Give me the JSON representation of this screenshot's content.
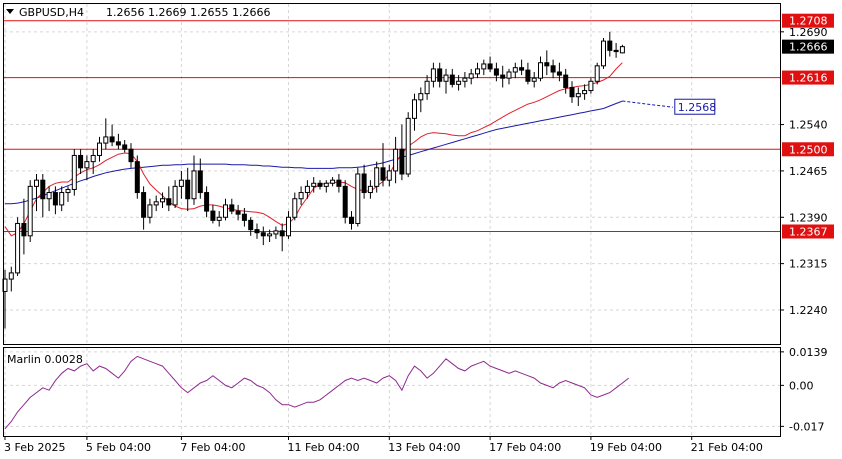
{
  "header": {
    "symbol": "GBPUSD,H4",
    "ohlc": "1.2656 1.2669 1.2655 1.2666"
  },
  "colors": {
    "background": "#ffffff",
    "grid": "#d6d6d6",
    "bull_candle": "#ffffff",
    "bear_candle": "#000000",
    "candle_outline": "#000000",
    "ma_fast": "#e0202a",
    "ma_slow": "#1a1aa8",
    "level_line": "#e01010",
    "level_label_bg": "#e01010",
    "current_price_bg": "#000000",
    "marlin_line": "#8e2a8e",
    "projection_label": "#1a1aa8"
  },
  "chart_data": [
    {
      "type": "candlestick",
      "ylim": [
        1.2185,
        1.2735
      ],
      "y_ticks": [
        "1.2690",
        "1.2540",
        "1.2465",
        "1.2390",
        "1.2315",
        "1.2240"
      ],
      "x_ticks": [
        {
          "label": "3 Feb 2025",
          "index": 0
        },
        {
          "label": "5 Feb 04:00",
          "index": 13
        },
        {
          "label": "7 Feb 04:00",
          "index": 28
        },
        {
          "label": "11 Feb 04:00",
          "index": 45
        },
        {
          "label": "13 Feb 04:00",
          "index": 61
        },
        {
          "label": "17 Feb 04:00",
          "index": 77
        },
        {
          "label": "19 Feb 04:00",
          "index": 93
        },
        {
          "label": "21 Feb 04:00",
          "index": 109
        }
      ],
      "candles": [
        [
          1.227,
          1.2305,
          1.221,
          1.229
        ],
        [
          1.229,
          1.231,
          1.227,
          1.23
        ],
        [
          1.23,
          1.239,
          1.2295,
          1.238
        ],
        [
          1.238,
          1.242,
          1.233,
          1.236
        ],
        [
          1.236,
          1.245,
          1.235,
          1.244
        ],
        [
          1.244,
          1.246,
          1.24,
          1.245
        ],
        [
          1.245,
          1.246,
          1.239,
          1.242
        ],
        [
          1.242,
          1.244,
          1.24,
          1.243
        ],
        [
          1.243,
          1.244,
          1.2395,
          1.241
        ],
        [
          1.241,
          1.244,
          1.24,
          1.243
        ],
        [
          1.243,
          1.244,
          1.2415,
          1.2435
        ],
        [
          1.2435,
          1.25,
          1.2425,
          1.249
        ],
        [
          1.249,
          1.25,
          1.246,
          1.247
        ],
        [
          1.247,
          1.249,
          1.245,
          1.248
        ],
        [
          1.248,
          1.25,
          1.246,
          1.249
        ],
        [
          1.249,
          1.252,
          1.248,
          1.251
        ],
        [
          1.251,
          1.255,
          1.25,
          1.252
        ],
        [
          1.252,
          1.254,
          1.2505,
          1.2512
        ],
        [
          1.2512,
          1.2525,
          1.25,
          1.2507
        ],
        [
          1.2507,
          1.2515,
          1.2495,
          1.25
        ],
        [
          1.25,
          1.251,
          1.247,
          1.248
        ],
        [
          1.248,
          1.249,
          1.242,
          1.243
        ],
        [
          1.243,
          1.244,
          1.237,
          1.239
        ],
        [
          1.239,
          1.242,
          1.238,
          1.241
        ],
        [
          1.241,
          1.2425,
          1.24,
          1.2415
        ],
        [
          1.2415,
          1.243,
          1.2405,
          1.242
        ],
        [
          1.242,
          1.244,
          1.24,
          1.241
        ],
        [
          1.241,
          1.245,
          1.2405,
          1.244
        ],
        [
          1.244,
          1.2465,
          1.242,
          1.245
        ],
        [
          1.245,
          1.247,
          1.24,
          1.242
        ],
        [
          1.242,
          1.249,
          1.241,
          1.2465
        ],
        [
          1.2465,
          1.2485,
          1.242,
          1.243
        ],
        [
          1.243,
          1.244,
          1.239,
          1.24
        ],
        [
          1.24,
          1.241,
          1.238,
          1.2385
        ],
        [
          1.2385,
          1.24,
          1.2375,
          1.239
        ],
        [
          1.239,
          1.242,
          1.2385,
          1.241
        ],
        [
          1.241,
          1.242,
          1.2395,
          1.24
        ],
        [
          1.24,
          1.241,
          1.2385,
          1.2395
        ],
        [
          1.2395,
          1.2405,
          1.2375,
          1.2385
        ],
        [
          1.2385,
          1.239,
          1.236,
          1.237
        ],
        [
          1.237,
          1.238,
          1.2355,
          1.2365
        ],
        [
          1.2365,
          1.2375,
          1.2345,
          1.236
        ],
        [
          1.236,
          1.237,
          1.235,
          1.2363
        ],
        [
          1.2363,
          1.2375,
          1.2355,
          1.2368
        ],
        [
          1.2368,
          1.238,
          1.2335,
          1.236
        ],
        [
          1.236,
          1.24,
          1.2355,
          1.239
        ],
        [
          1.239,
          1.243,
          1.2385,
          1.242
        ],
        [
          1.242,
          1.244,
          1.241,
          1.243
        ],
        [
          1.243,
          1.245,
          1.242,
          1.244
        ],
        [
          1.244,
          1.2455,
          1.243,
          1.2445
        ],
        [
          1.2445,
          1.245,
          1.2435,
          1.244
        ],
        [
          1.244,
          1.245,
          1.243,
          1.2445
        ],
        [
          1.2445,
          1.2455,
          1.244,
          1.245
        ],
        [
          1.245,
          1.246,
          1.243,
          1.244
        ],
        [
          1.244,
          1.245,
          1.238,
          1.239
        ],
        [
          1.239,
          1.24,
          1.237,
          1.238
        ],
        [
          1.238,
          1.247,
          1.2375,
          1.246
        ],
        [
          1.246,
          1.2475,
          1.242,
          1.243
        ],
        [
          1.243,
          1.245,
          1.242,
          1.244
        ],
        [
          1.244,
          1.248,
          1.243,
          1.247
        ],
        [
          1.247,
          1.251,
          1.244,
          1.245
        ],
        [
          1.245,
          1.2475,
          1.244,
          1.2465
        ],
        [
          1.2465,
          1.252,
          1.2445,
          1.25
        ],
        [
          1.25,
          1.254,
          1.245,
          1.246
        ],
        [
          1.246,
          1.256,
          1.2455,
          1.255
        ],
        [
          1.255,
          1.259,
          1.253,
          1.258
        ],
        [
          1.258,
          1.26,
          1.256,
          1.259
        ],
        [
          1.259,
          1.262,
          1.258,
          1.261
        ],
        [
          1.261,
          1.264,
          1.26,
          1.263
        ],
        [
          1.263,
          1.264,
          1.26,
          1.261
        ],
        [
          1.261,
          1.263,
          1.259,
          1.262
        ],
        [
          1.262,
          1.263,
          1.26,
          1.2605
        ],
        [
          1.2605,
          1.262,
          1.2595,
          1.261
        ],
        [
          1.261,
          1.2625,
          1.26,
          1.2615
        ],
        [
          1.2615,
          1.263,
          1.2605,
          1.2622
        ],
        [
          1.2622,
          1.264,
          1.2615,
          1.263
        ],
        [
          1.263,
          1.2645,
          1.262,
          1.2638
        ],
        [
          1.2638,
          1.265,
          1.2625,
          1.263
        ],
        [
          1.263,
          1.264,
          1.261,
          1.262
        ],
        [
          1.262,
          1.2635,
          1.26,
          1.2615
        ],
        [
          1.2615,
          1.263,
          1.2605,
          1.2625
        ],
        [
          1.2625,
          1.264,
          1.2615,
          1.2632
        ],
        [
          1.2632,
          1.2645,
          1.262,
          1.2628
        ],
        [
          1.2628,
          1.264,
          1.2605,
          1.261
        ],
        [
          1.261,
          1.2625,
          1.26,
          1.2615
        ],
        [
          1.2615,
          1.265,
          1.261,
          1.264
        ],
        [
          1.264,
          1.266,
          1.262,
          1.2635
        ],
        [
          1.2635,
          1.2645,
          1.2615,
          1.2625
        ],
        [
          1.2625,
          1.264,
          1.261,
          1.262
        ],
        [
          1.262,
          1.263,
          1.259,
          1.26
        ],
        [
          1.26,
          1.261,
          1.2575,
          1.2585
        ],
        [
          1.2585,
          1.26,
          1.257,
          1.259
        ],
        [
          1.259,
          1.2605,
          1.258,
          1.2595
        ],
        [
          1.2595,
          1.2615,
          1.259,
          1.261
        ],
        [
          1.261,
          1.264,
          1.2605,
          1.2635
        ],
        [
          1.2635,
          1.268,
          1.263,
          1.2675
        ],
        [
          1.2675,
          1.269,
          1.265,
          1.266
        ],
        [
          1.266,
          1.2672,
          1.2648,
          1.2658
        ],
        [
          1.2656,
          1.2669,
          1.2655,
          1.2666
        ]
      ],
      "ma_fast": [
        1.2375,
        1.236,
        1.2365,
        1.238,
        1.24,
        1.242,
        1.243,
        1.244,
        1.2445,
        1.2447,
        1.2447,
        1.2455,
        1.2462,
        1.2467,
        1.247,
        1.2475,
        1.2482,
        1.2487,
        1.2492,
        1.2494,
        1.2493,
        1.248,
        1.246,
        1.2444,
        1.2434,
        1.2425,
        1.2415,
        1.2408,
        1.2404,
        1.2403,
        1.2404,
        1.2408,
        1.241,
        1.241,
        1.2408,
        1.2405,
        1.2403,
        1.2401,
        1.24,
        1.2399,
        1.2398,
        1.2396,
        1.239,
        1.2383,
        1.2377,
        1.238,
        1.239,
        1.2408,
        1.2422,
        1.2437,
        1.2443,
        1.2445,
        1.2446,
        1.2447,
        1.2446,
        1.244,
        1.2435,
        1.2433,
        1.2432,
        1.244,
        1.2448,
        1.246,
        1.2478,
        1.2493,
        1.2505,
        1.2512,
        1.252,
        1.2525,
        1.2527,
        1.2526,
        1.2525,
        1.2523,
        1.2522,
        1.2522,
        1.2527,
        1.253,
        1.2535,
        1.254,
        1.2546,
        1.2552,
        1.2558,
        1.2563,
        1.2568,
        1.2573,
        1.2576,
        1.258,
        1.2585,
        1.259,
        1.2595,
        1.2598,
        1.26,
        1.2602,
        1.2603,
        1.2605,
        1.2608,
        1.2612,
        1.2618,
        1.263,
        1.264
      ],
      "ma_slow": [
        1.2412,
        1.2412,
        1.2413,
        1.2415,
        1.2418,
        1.2421,
        1.2425,
        1.2429,
        1.2433,
        1.2437,
        1.2441,
        1.2445,
        1.2449,
        1.2452,
        1.2456,
        1.2459,
        1.2462,
        1.2464,
        1.2466,
        1.2468,
        1.2469,
        1.247,
        1.2471,
        1.2472,
        1.2473,
        1.2474,
        1.2474,
        1.2475,
        1.2475,
        1.2476,
        1.2476,
        1.2476,
        1.2476,
        1.2476,
        1.2476,
        1.2476,
        1.2475,
        1.2475,
        1.2475,
        1.2474,
        1.2474,
        1.2473,
        1.2473,
        1.2472,
        1.2471,
        1.2471,
        1.247,
        1.247,
        1.2469,
        1.2469,
        1.2469,
        1.2469,
        1.2469,
        1.247,
        1.247,
        1.247,
        1.2471,
        1.2472,
        1.2474,
        1.2476,
        1.2478,
        1.2481,
        1.2484,
        1.2487,
        1.249,
        1.2493,
        1.2496,
        1.2499,
        1.2502,
        1.2505,
        1.2508,
        1.2511,
        1.2514,
        1.2517,
        1.252,
        1.2523,
        1.2526,
        1.2529,
        1.2532,
        1.2534,
        1.2536,
        1.2538,
        1.254,
        1.2542,
        1.2544,
        1.2546,
        1.2548,
        1.255,
        1.2552,
        1.2554,
        1.2556,
        1.2558,
        1.256,
        1.2562,
        1.2564,
        1.2566,
        1.257,
        1.2574,
        1.2578
      ],
      "ma_slow_projection": {
        "to_index": 106,
        "value": 1.2568
      },
      "levels": [
        {
          "value": 1.2708,
          "label": "1.2708"
        },
        {
          "value": 1.2616,
          "label": "1.2616"
        },
        {
          "value": 1.25,
          "label": "1.2500"
        },
        {
          "value": 1.2367,
          "label": "1.2367"
        }
      ],
      "current_price": {
        "value": 1.2666,
        "label": "1.2666"
      },
      "projection_label": "1.2568"
    },
    {
      "type": "line",
      "title": "Marlin 0.0028",
      "ylim": [
        -0.021,
        0.0155
      ],
      "y_ticks": [
        "0.0139",
        "0.00",
        "-0.017"
      ],
      "series": [
        {
          "values": [
            -0.018,
            -0.015,
            -0.011,
            -0.008,
            -0.005,
            -0.003,
            -0.001,
            -0.002,
            0.002,
            0.005,
            0.007,
            0.006,
            0.008,
            0.009,
            0.006,
            0.008,
            0.007,
            0.005,
            0.003,
            0.006,
            0.01,
            0.012,
            0.011,
            0.01,
            0.009,
            0.008,
            0.005,
            0.002,
            -0.001,
            -0.003,
            -0.001,
            0.001,
            0.002,
            0.004,
            0.002,
            0.0,
            -0.001,
            0.001,
            0.003,
            0.002,
            0.0,
            -0.001,
            -0.003,
            -0.006,
            -0.008,
            -0.008,
            -0.009,
            -0.008,
            -0.007,
            -0.007,
            -0.006,
            -0.004,
            -0.002,
            0.0,
            0.002,
            0.003,
            0.002,
            0.003,
            0.002,
            0.001,
            0.003,
            0.004,
            0.002,
            -0.002,
            0.004,
            0.008,
            0.006,
            0.003,
            0.005,
            0.008,
            0.011,
            0.009,
            0.007,
            0.006,
            0.008,
            0.009,
            0.01,
            0.008,
            0.007,
            0.006,
            0.005,
            0.006,
            0.005,
            0.004,
            0.003,
            0.001,
            0.0,
            -0.001,
            0.001,
            0.002,
            0.001,
            0.0,
            -0.001,
            -0.004,
            -0.005,
            -0.004,
            -0.003,
            -0.001,
            0.001,
            0.003
          ]
        }
      ]
    }
  ]
}
